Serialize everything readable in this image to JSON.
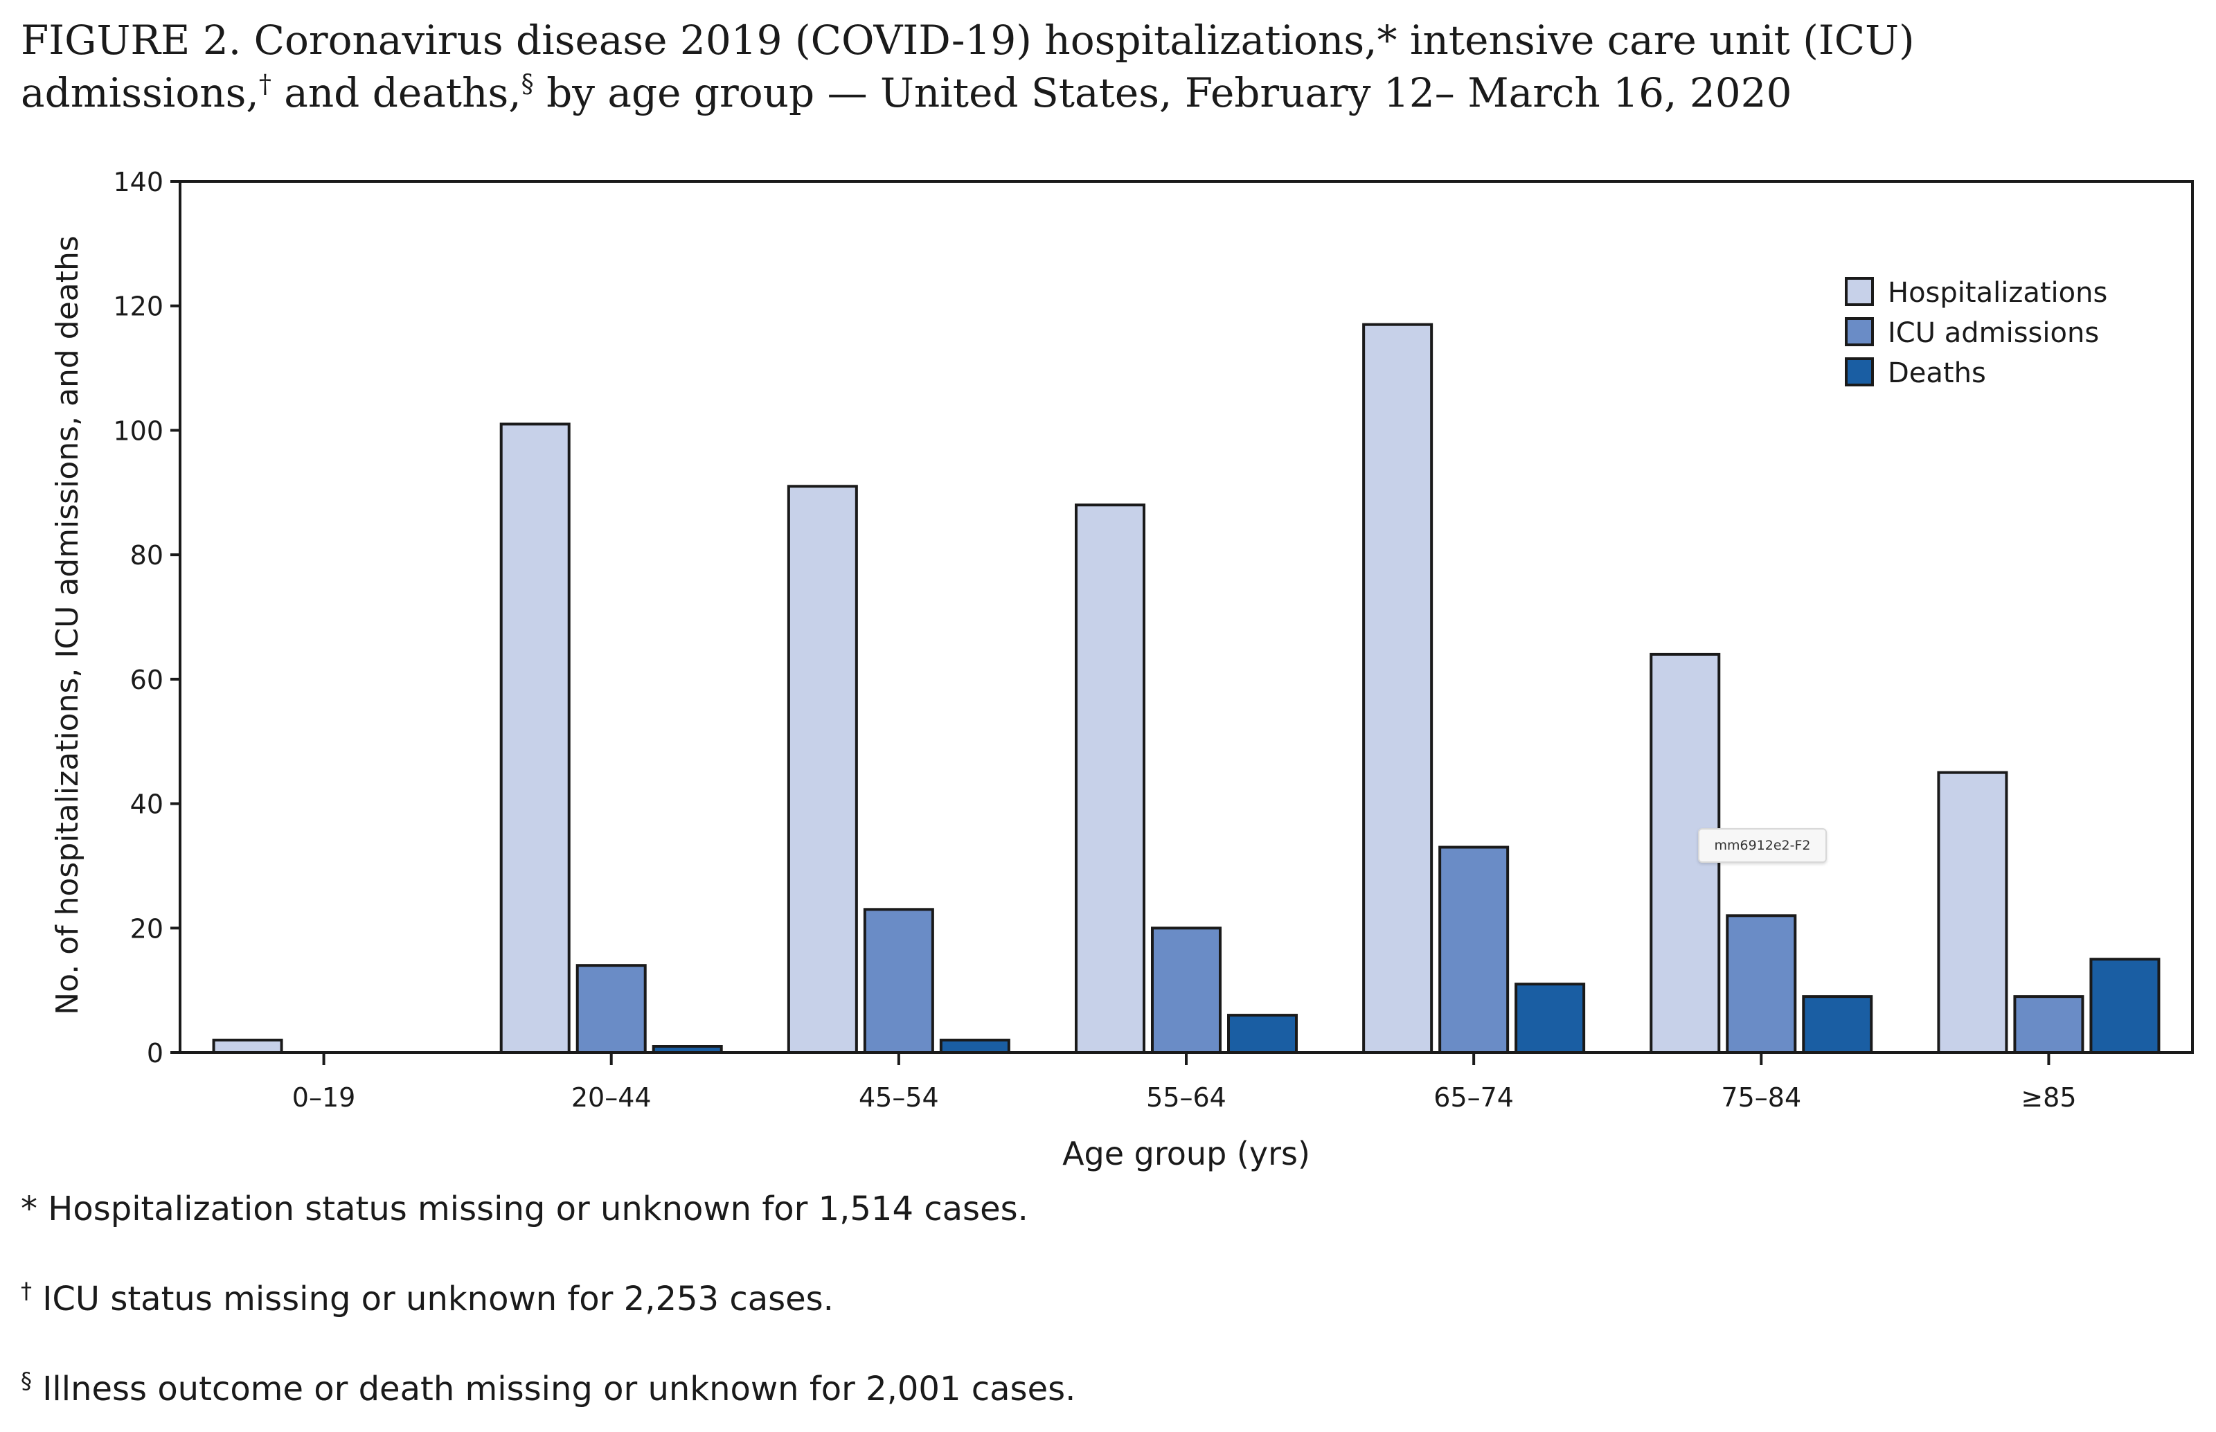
{
  "figure": {
    "title_part1": "FIGURE 2. Coronavirus disease 2019 (COVID-19) hospitalizations,",
    "title_mark1": "*",
    "title_part2": " intensive care unit (ICU) admissions,",
    "title_mark2": "†",
    "title_part3": " and deaths,",
    "title_mark3": "§",
    "title_part4": " by age group — United States, February 12– March 16, 2020"
  },
  "tag": "mm6912e2-F2",
  "footnotes": [
    {
      "mark": "*",
      "text": " Hospitalization status missing or unknown for 1,514 cases."
    },
    {
      "mark": "†",
      "text": " ICU status missing or unknown for 2,253 cases."
    },
    {
      "mark": "§",
      "text": " Illness outcome or death missing or unknown for 2,001 cases."
    }
  ],
  "colors": {
    "hospitalizations": "#c7d1e9",
    "icu": "#6a8cc6",
    "deaths": "#1a5ea3",
    "axis": "#1a1a1a"
  },
  "chart_data": {
    "type": "bar",
    "title": "",
    "xlabel": "Age group (yrs)",
    "ylabel": "No. of hospitalizations, ICU admissions, and deaths",
    "ylim": [
      0,
      140
    ],
    "yticks": [
      0,
      20,
      40,
      60,
      80,
      100,
      120,
      140
    ],
    "categories": [
      "0–19",
      "20–44",
      "45–54",
      "55–64",
      "65–74",
      "75–84",
      "≥85"
    ],
    "legend_position": "top-right",
    "grid": false,
    "series": [
      {
        "name": "Hospitalizations",
        "color": "#c7d1e9",
        "values": [
          2,
          101,
          91,
          88,
          117,
          64,
          45
        ]
      },
      {
        "name": "ICU admissions",
        "color": "#6a8cc6",
        "values": [
          0,
          14,
          23,
          20,
          33,
          22,
          9
        ]
      },
      {
        "name": "Deaths",
        "color": "#1a5ea3",
        "values": [
          0,
          1,
          2,
          6,
          11,
          9,
          15
        ]
      }
    ]
  }
}
